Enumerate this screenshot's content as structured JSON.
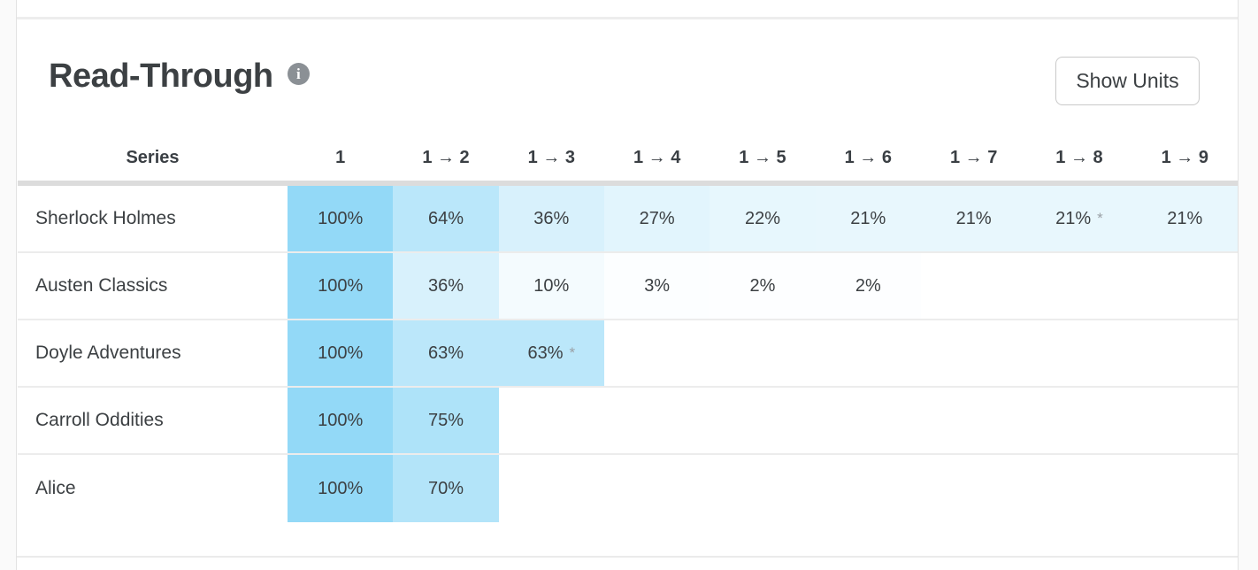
{
  "ui": {
    "title": "Read-Through",
    "info_glyph": "i",
    "show_units_label": "Show Units",
    "series_header": "Series"
  },
  "colors": {
    "heat_base": "#93d9f7",
    "header_underline": "#dcdcdc",
    "row_divider": "#ececec",
    "asterisk": "#9aa0a6"
  },
  "chart_data": {
    "type": "heatmap",
    "title": "Read-Through",
    "unit": "percent",
    "columns": [
      "1",
      "1 → 2",
      "1 → 3",
      "1 → 4",
      "1 → 5",
      "1 → 6",
      "1 → 7",
      "1 → 8",
      "1 → 9"
    ],
    "value_range": [
      0,
      100
    ],
    "rows": [
      {
        "name": "Sherlock Holmes",
        "cells": [
          {
            "label": "100%",
            "value": 100
          },
          {
            "label": "64%",
            "value": 64
          },
          {
            "label": "36%",
            "value": 36
          },
          {
            "label": "27%",
            "value": 27
          },
          {
            "label": "22%",
            "value": 22
          },
          {
            "label": "21%",
            "value": 21
          },
          {
            "label": "21%",
            "value": 21
          },
          {
            "label": "21%",
            "value": 21,
            "asterisk": true
          },
          {
            "label": "21%",
            "value": 21
          }
        ]
      },
      {
        "name": "Austen Classics",
        "cells": [
          {
            "label": "100%",
            "value": 100
          },
          {
            "label": "36%",
            "value": 36
          },
          {
            "label": "10%",
            "value": 10
          },
          {
            "label": "3%",
            "value": 3
          },
          {
            "label": "2%",
            "value": 2
          },
          {
            "label": "2%",
            "value": 2
          }
        ]
      },
      {
        "name": "Doyle Adventures",
        "cells": [
          {
            "label": "100%",
            "value": 100
          },
          {
            "label": "63%",
            "value": 63
          },
          {
            "label": "63%",
            "value": 63,
            "asterisk": true
          }
        ]
      },
      {
        "name": "Carroll Oddities",
        "cells": [
          {
            "label": "100%",
            "value": 100
          },
          {
            "label": "75%",
            "value": 75
          }
        ]
      },
      {
        "name": "Alice",
        "cells": [
          {
            "label": "100%",
            "value": 100
          },
          {
            "label": "70%",
            "value": 70
          }
        ]
      }
    ],
    "asterisk_symbol": "*"
  }
}
